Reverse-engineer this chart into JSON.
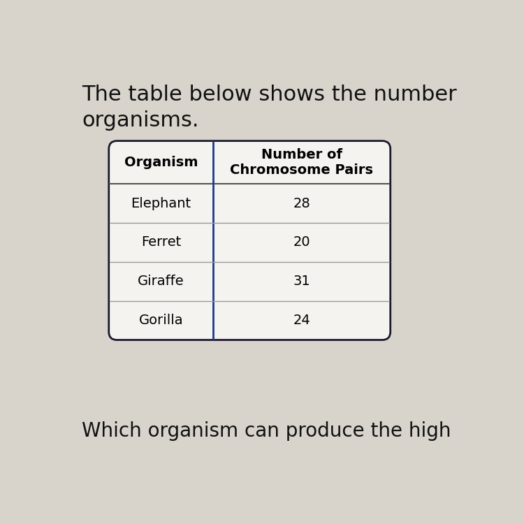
{
  "title_line1": "The table below shows the number",
  "title_line2": "organisms.",
  "footer_text": "Which organism can produce the high",
  "col_headers": [
    "Organism",
    "Number of\nChromosome Pairs"
  ],
  "rows": [
    [
      "Elephant",
      "28"
    ],
    [
      "Ferret",
      "20"
    ],
    [
      "Giraffe",
      "31"
    ],
    [
      "Gorilla",
      "24"
    ]
  ],
  "bg_color": "#d8d4cc",
  "table_bg": "#f5f3ef",
  "border_color": "#1a1a2e",
  "title_color": "#111111",
  "footer_color": "#111111",
  "cell_line_color": "#999999",
  "header_divider_color": "#555555",
  "vert_divider_color": "#1a3a8a",
  "title_fontsize": 22,
  "footer_fontsize": 20,
  "header_fontsize": 14,
  "cell_fontsize": 14
}
